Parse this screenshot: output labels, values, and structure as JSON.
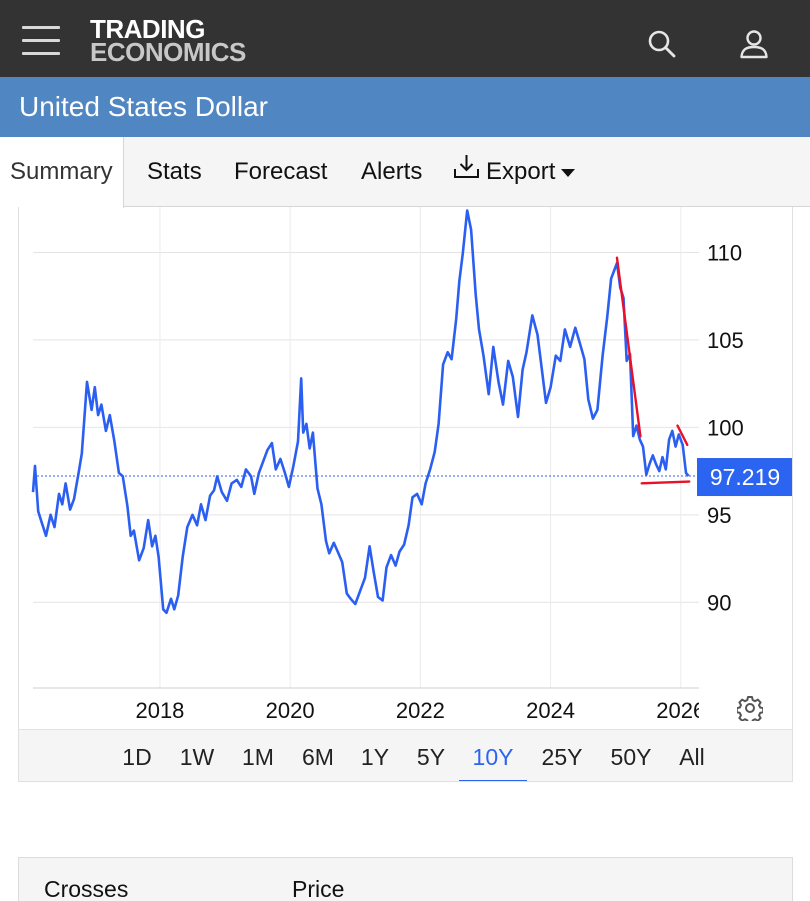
{
  "header": {
    "logo_line1": "TRADING",
    "logo_line2": "ECONOMICS",
    "icons": [
      "hamburger-menu-icon",
      "search-icon",
      "user-icon"
    ]
  },
  "page": {
    "title": "United States Dollar"
  },
  "tabs": [
    {
      "label": "Summary",
      "active": true
    },
    {
      "label": "Stats",
      "active": false
    },
    {
      "label": "Forecast",
      "active": false
    },
    {
      "label": "Alerts",
      "active": false
    },
    {
      "label": "Export",
      "active": false,
      "icon": "download-icon",
      "dropdown": true
    }
  ],
  "colors": {
    "series": "#2b5ff2",
    "trendline": "#e8102a",
    "current_label_bg": "#2b64f0",
    "header_bg": "#333333",
    "title_bg": "#5087c3",
    "active_range": "#2b64f0"
  },
  "chart_data": {
    "type": "line",
    "title": "",
    "xlabel": "",
    "ylabel": "",
    "x_ticks": [
      "2018",
      "2020",
      "2022",
      "2024",
      "2026"
    ],
    "y_ticks": [
      90,
      95,
      100,
      105,
      110
    ],
    "xlim": [
      2016.05,
      2026.28
    ],
    "ylim": [
      85.1,
      112.6
    ],
    "grid": true,
    "y_axis_position": "right",
    "current_value": 97.219,
    "current_value_label": "97.219",
    "series": [
      {
        "name": "",
        "points": [
          [
            2016.05,
            96.3
          ],
          [
            2016.08,
            97.8
          ],
          [
            2016.13,
            95.2
          ],
          [
            2016.18,
            94.6
          ],
          [
            2016.25,
            93.8
          ],
          [
            2016.32,
            95.0
          ],
          [
            2016.38,
            94.3
          ],
          [
            2016.45,
            96.2
          ],
          [
            2016.5,
            95.6
          ],
          [
            2016.55,
            96.8
          ],
          [
            2016.62,
            95.3
          ],
          [
            2016.68,
            95.9
          ],
          [
            2016.75,
            97.4
          ],
          [
            2016.8,
            98.5
          ],
          [
            2016.85,
            101.1
          ],
          [
            2016.88,
            102.6
          ],
          [
            2016.95,
            101.0
          ],
          [
            2017.0,
            102.3
          ],
          [
            2017.05,
            100.7
          ],
          [
            2017.1,
            101.3
          ],
          [
            2017.17,
            99.8
          ],
          [
            2017.23,
            100.7
          ],
          [
            2017.3,
            99.2
          ],
          [
            2017.37,
            97.4
          ],
          [
            2017.43,
            97.2
          ],
          [
            2017.5,
            95.5
          ],
          [
            2017.55,
            93.8
          ],
          [
            2017.6,
            94.1
          ],
          [
            2017.68,
            92.4
          ],
          [
            2017.75,
            93.1
          ],
          [
            2017.82,
            94.7
          ],
          [
            2017.88,
            93.2
          ],
          [
            2017.93,
            93.8
          ],
          [
            2017.98,
            92.6
          ],
          [
            2018.05,
            89.6
          ],
          [
            2018.1,
            89.4
          ],
          [
            2018.17,
            90.2
          ],
          [
            2018.22,
            89.6
          ],
          [
            2018.28,
            90.4
          ],
          [
            2018.35,
            92.6
          ],
          [
            2018.42,
            94.3
          ],
          [
            2018.5,
            95.0
          ],
          [
            2018.57,
            94.4
          ],
          [
            2018.63,
            95.6
          ],
          [
            2018.7,
            94.7
          ],
          [
            2018.77,
            96.1
          ],
          [
            2018.83,
            96.4
          ],
          [
            2018.88,
            97.2
          ],
          [
            2018.95,
            96.3
          ],
          [
            2019.03,
            95.8
          ],
          [
            2019.1,
            96.8
          ],
          [
            2019.18,
            97.0
          ],
          [
            2019.25,
            96.6
          ],
          [
            2019.32,
            97.6
          ],
          [
            2019.4,
            97.2
          ],
          [
            2019.45,
            96.2
          ],
          [
            2019.52,
            97.4
          ],
          [
            2019.58,
            98.0
          ],
          [
            2019.65,
            98.7
          ],
          [
            2019.72,
            99.1
          ],
          [
            2019.78,
            97.6
          ],
          [
            2019.85,
            98.2
          ],
          [
            2019.92,
            97.4
          ],
          [
            2019.98,
            96.6
          ],
          [
            2020.05,
            97.8
          ],
          [
            2020.12,
            99.2
          ],
          [
            2020.17,
            102.8
          ],
          [
            2020.2,
            99.7
          ],
          [
            2020.25,
            100.2
          ],
          [
            2020.3,
            98.8
          ],
          [
            2020.35,
            99.7
          ],
          [
            2020.42,
            96.5
          ],
          [
            2020.48,
            95.6
          ],
          [
            2020.55,
            93.5
          ],
          [
            2020.6,
            92.8
          ],
          [
            2020.67,
            93.4
          ],
          [
            2020.73,
            92.9
          ],
          [
            2020.8,
            92.3
          ],
          [
            2020.87,
            90.5
          ],
          [
            2020.93,
            90.2
          ],
          [
            2021.0,
            89.9
          ],
          [
            2021.07,
            90.6
          ],
          [
            2021.15,
            91.4
          ],
          [
            2021.22,
            93.2
          ],
          [
            2021.28,
            91.8
          ],
          [
            2021.35,
            90.3
          ],
          [
            2021.42,
            90.1
          ],
          [
            2021.48,
            92.0
          ],
          [
            2021.55,
            92.7
          ],
          [
            2021.62,
            92.1
          ],
          [
            2021.68,
            92.9
          ],
          [
            2021.75,
            93.3
          ],
          [
            2021.82,
            94.4
          ],
          [
            2021.88,
            96.0
          ],
          [
            2021.95,
            96.2
          ],
          [
            2022.02,
            95.6
          ],
          [
            2022.08,
            96.8
          ],
          [
            2022.15,
            97.6
          ],
          [
            2022.22,
            98.6
          ],
          [
            2022.28,
            100.2
          ],
          [
            2022.35,
            103.6
          ],
          [
            2022.42,
            104.3
          ],
          [
            2022.48,
            103.9
          ],
          [
            2022.55,
            106.2
          ],
          [
            2022.6,
            108.4
          ],
          [
            2022.65,
            109.9
          ],
          [
            2022.72,
            112.4
          ],
          [
            2022.78,
            111.3
          ],
          [
            2022.85,
            107.6
          ],
          [
            2022.9,
            105.6
          ],
          [
            2022.97,
            104.1
          ],
          [
            2023.05,
            101.9
          ],
          [
            2023.12,
            104.6
          ],
          [
            2023.2,
            102.6
          ],
          [
            2023.27,
            101.3
          ],
          [
            2023.35,
            103.8
          ],
          [
            2023.42,
            102.9
          ],
          [
            2023.5,
            100.6
          ],
          [
            2023.57,
            103.3
          ],
          [
            2023.63,
            104.3
          ],
          [
            2023.72,
            106.4
          ],
          [
            2023.8,
            105.3
          ],
          [
            2023.87,
            103.2
          ],
          [
            2023.93,
            101.4
          ],
          [
            2024.0,
            102.3
          ],
          [
            2024.08,
            104.1
          ],
          [
            2024.15,
            103.8
          ],
          [
            2024.22,
            105.6
          ],
          [
            2024.3,
            104.6
          ],
          [
            2024.38,
            105.7
          ],
          [
            2024.45,
            104.8
          ],
          [
            2024.52,
            103.9
          ],
          [
            2024.58,
            101.6
          ],
          [
            2024.65,
            100.5
          ],
          [
            2024.72,
            101.0
          ],
          [
            2024.8,
            104.1
          ],
          [
            2024.87,
            106.3
          ],
          [
            2024.93,
            108.5
          ],
          [
            2025.02,
            109.4
          ],
          [
            2025.07,
            108.0
          ],
          [
            2025.12,
            107.4
          ],
          [
            2025.17,
            103.8
          ],
          [
            2025.22,
            104.2
          ],
          [
            2025.27,
            99.5
          ],
          [
            2025.32,
            100.1
          ],
          [
            2025.37,
            99.3
          ],
          [
            2025.42,
            98.9
          ],
          [
            2025.47,
            97.3
          ],
          [
            2025.52,
            97.9
          ],
          [
            2025.57,
            98.4
          ],
          [
            2025.62,
            97.9
          ],
          [
            2025.67,
            97.5
          ],
          [
            2025.72,
            98.3
          ],
          [
            2025.77,
            97.6
          ],
          [
            2025.82,
            99.3
          ],
          [
            2025.87,
            99.8
          ],
          [
            2025.92,
            98.9
          ],
          [
            2025.97,
            99.6
          ],
          [
            2026.03,
            99.0
          ],
          [
            2026.08,
            97.4
          ],
          [
            2026.12,
            97.22
          ]
        ]
      }
    ],
    "trendlines": [
      {
        "from": [
          2025.02,
          109.7
        ],
        "to": [
          2025.38,
          99.5
        ]
      },
      {
        "from": [
          2025.95,
          100.1
        ],
        "to": [
          2026.1,
          99.0
        ]
      },
      {
        "from": [
          2025.4,
          96.8
        ],
        "to": [
          2026.13,
          96.9
        ]
      }
    ]
  },
  "time_ranges": [
    {
      "label": "1D",
      "active": false
    },
    {
      "label": "1W",
      "active": false
    },
    {
      "label": "1M",
      "active": false
    },
    {
      "label": "6M",
      "active": false
    },
    {
      "label": "1Y",
      "active": false
    },
    {
      "label": "5Y",
      "active": false
    },
    {
      "label": "10Y",
      "active": true
    },
    {
      "label": "25Y",
      "active": false
    },
    {
      "label": "50Y",
      "active": false
    },
    {
      "label": "All",
      "active": false
    }
  ],
  "crosses_table": {
    "columns": [
      "Crosses",
      "Price"
    ]
  }
}
